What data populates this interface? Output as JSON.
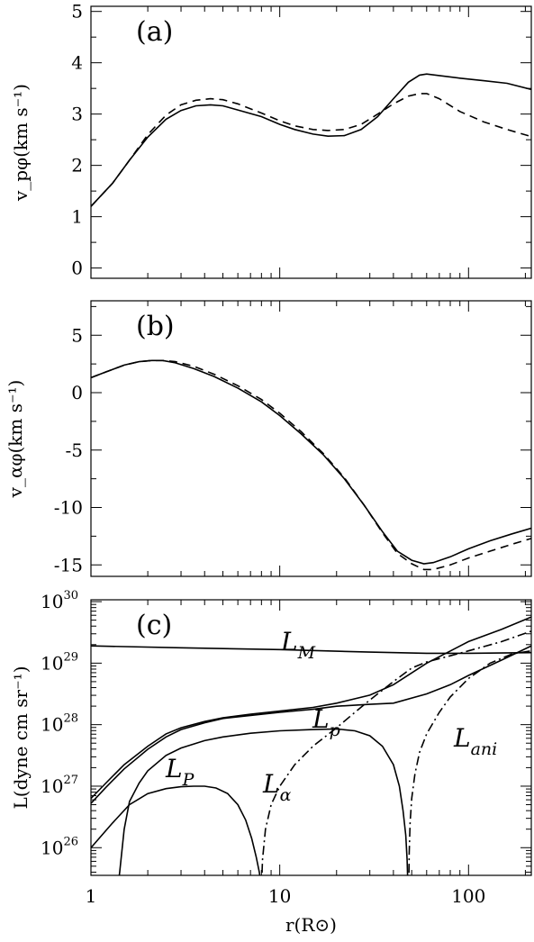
{
  "chart_data": [
    {
      "panel": "a",
      "panel_label": "(a)",
      "type": "line",
      "ylabel": "v_pφ(km s⁻¹)",
      "ylim": [
        -0.2,
        5.1
      ],
      "yticks": [
        0,
        1,
        2,
        3,
        4,
        5
      ],
      "x_scale": "log",
      "xlim": [
        1,
        215
      ],
      "series": [
        {
          "style": "solid",
          "x": [
            1,
            1.3,
            1.6,
            2,
            2.5,
            3,
            3.6,
            4.3,
            5,
            6,
            8,
            10,
            12,
            15,
            18,
            22,
            27,
            33,
            40,
            48,
            55,
            60,
            70,
            90,
            120,
            160,
            215
          ],
          "y": [
            1.2,
            1.65,
            2.1,
            2.55,
            2.9,
            3.07,
            3.16,
            3.18,
            3.16,
            3.08,
            2.95,
            2.8,
            2.7,
            2.61,
            2.57,
            2.58,
            2.7,
            2.95,
            3.3,
            3.62,
            3.76,
            3.78,
            3.75,
            3.7,
            3.65,
            3.6,
            3.48
          ]
        },
        {
          "style": "dashed",
          "x": [
            1,
            1.3,
            1.6,
            2,
            2.5,
            3,
            3.6,
            4.3,
            5,
            6,
            8,
            10,
            12,
            15,
            18,
            22,
            27,
            33,
            40,
            48,
            55,
            60,
            70,
            90,
            120,
            160,
            215
          ],
          "y": [
            1.2,
            1.65,
            2.1,
            2.6,
            2.98,
            3.18,
            3.27,
            3.3,
            3.28,
            3.2,
            3.02,
            2.87,
            2.77,
            2.7,
            2.68,
            2.7,
            2.8,
            3.0,
            3.2,
            3.35,
            3.4,
            3.4,
            3.3,
            3.05,
            2.85,
            2.7,
            2.56
          ]
        }
      ]
    },
    {
      "panel": "b",
      "panel_label": "(b)",
      "type": "line",
      "ylabel": "v_αφ(km s⁻¹)",
      "ylim": [
        -16,
        8
      ],
      "yticks": [
        -15,
        -10,
        -5,
        0,
        5
      ],
      "x_scale": "log",
      "xlim": [
        1,
        215
      ],
      "series": [
        {
          "style": "solid",
          "x": [
            1,
            1.2,
            1.5,
            1.8,
            2.1,
            2.4,
            2.8,
            3.5,
            4.5,
            6,
            8,
            10,
            13,
            17,
            22,
            28,
            35,
            42,
            50,
            58,
            65,
            80,
            100,
            130,
            170,
            215
          ],
          "y": [
            1.3,
            1.8,
            2.4,
            2.7,
            2.8,
            2.8,
            2.6,
            2.1,
            1.4,
            0.4,
            -0.8,
            -2.0,
            -3.6,
            -5.4,
            -7.5,
            -9.8,
            -12.1,
            -13.8,
            -14.6,
            -14.9,
            -14.8,
            -14.3,
            -13.6,
            -12.9,
            -12.3,
            -11.8
          ]
        },
        {
          "style": "dashed",
          "x": [
            1,
            1.2,
            1.5,
            1.8,
            2.1,
            2.4,
            2.8,
            3.5,
            4.5,
            6,
            8,
            10,
            13,
            17,
            22,
            28,
            35,
            42,
            50,
            58,
            65,
            80,
            100,
            130,
            170,
            215
          ],
          "y": [
            1.3,
            1.8,
            2.4,
            2.7,
            2.8,
            2.8,
            2.7,
            2.3,
            1.6,
            0.6,
            -0.6,
            -1.8,
            -3.4,
            -5.3,
            -7.4,
            -9.8,
            -12.2,
            -14.0,
            -14.9,
            -15.4,
            -15.4,
            -15.0,
            -14.4,
            -13.8,
            -13.2,
            -12.7
          ]
        }
      ]
    },
    {
      "panel": "c",
      "panel_label": "(c)",
      "type": "line",
      "y_scale": "log",
      "ylabel": "L(dyne cm sr⁻¹)",
      "ylim_exp": [
        25.55,
        30.03
      ],
      "yticks_exp": [
        26,
        27,
        28,
        29,
        30
      ],
      "ytick_base": "10",
      "x_scale": "log",
      "xlim": [
        1,
        215
      ],
      "xticks": [
        1,
        10,
        100
      ],
      "xlabel": "r(R⊙)",
      "series": [
        {
          "name": "L_M",
          "label_main": "L",
          "label_sub": "M",
          "style": "solid",
          "x": [
            1,
            3,
            10,
            30,
            60,
            100,
            215
          ],
          "logy": [
            29.28,
            29.25,
            29.22,
            29.18,
            29.16,
            29.16,
            29.17
          ]
        },
        {
          "name": "L_P",
          "label_main": "L",
          "label_sub": "P",
          "style": "solid",
          "x": [
            1,
            1.2,
            1.5,
            2,
            2.5,
            3,
            4,
            5,
            7,
            10,
            15,
            20,
            30,
            40,
            60,
            100,
            150,
            215
          ],
          "logy": [
            26.8,
            27.05,
            27.35,
            27.65,
            27.85,
            27.95,
            28.05,
            28.11,
            28.17,
            28.22,
            28.28,
            28.35,
            28.48,
            28.65,
            29.0,
            29.35,
            29.55,
            29.75
          ]
        },
        {
          "name": "L_p",
          "label_main": "L",
          "label_sub": "p",
          "style": "solid",
          "x": [
            1,
            1.2,
            1.5,
            2,
            2.5,
            3,
            4,
            5,
            7,
            10,
            15,
            20,
            30,
            40,
            60,
            80,
            100,
            150,
            215
          ],
          "logy": [
            26.72,
            26.98,
            27.28,
            27.6,
            27.8,
            27.92,
            28.03,
            28.1,
            28.15,
            28.2,
            28.25,
            28.3,
            28.33,
            28.35,
            28.5,
            28.65,
            28.8,
            29.05,
            29.28
          ]
        },
        {
          "name": "L_α",
          "label_main": "L",
          "label_sub": "α",
          "style": "solid",
          "x": [
            1,
            1.3,
            1.6,
            2,
            2.5,
            3,
            3.5,
            4,
            4.6,
            5.3,
            6,
            6.6,
            7.1,
            7.5,
            7.8,
            7.95,
            8.0
          ],
          "logy": [
            26.0,
            26.4,
            26.7,
            26.88,
            26.96,
            26.99,
            27.0,
            27.0,
            26.97,
            26.88,
            26.7,
            26.45,
            26.15,
            25.85,
            25.6,
            25.4,
            25.3
          ]
        },
        {
          "name": "L_α",
          "label_main": "",
          "label_sub": "",
          "style": "solid",
          "x": [
            1.38,
            1.42,
            1.5,
            1.6,
            1.8,
            2,
            2.5,
            3,
            4,
            5,
            7,
            10,
            15,
            20,
            25,
            30,
            35,
            40,
            43,
            45,
            46.5,
            47.3,
            47.8
          ],
          "logy": [
            25.3,
            25.6,
            26.3,
            26.75,
            27.05,
            27.25,
            27.5,
            27.62,
            27.74,
            27.8,
            27.86,
            27.9,
            27.92,
            27.93,
            27.9,
            27.82,
            27.65,
            27.35,
            27.0,
            26.6,
            26.2,
            25.8,
            25.3
          ]
        },
        {
          "name": "L_ani",
          "label_main": "",
          "label_sub": "",
          "style": "dashdot",
          "x": [
            8.0,
            8.1,
            8.4,
            9,
            10,
            12,
            15,
            20,
            25,
            30,
            40,
            50,
            60,
            80,
            100,
            150,
            215
          ],
          "logy": [
            25.3,
            25.8,
            26.3,
            26.7,
            27.0,
            27.35,
            27.65,
            27.95,
            28.2,
            28.4,
            28.7,
            28.92,
            29.02,
            29.12,
            29.2,
            29.35,
            29.52
          ]
        },
        {
          "name": "L_ani",
          "label_main": "L",
          "label_sub": "ani",
          "style": "dashdot",
          "x": [
            48.2,
            48.5,
            49,
            50,
            52,
            55,
            60,
            70,
            80,
            100,
            130,
            170,
            215
          ],
          "logy": [
            25.3,
            25.9,
            26.4,
            26.8,
            27.2,
            27.55,
            27.85,
            28.2,
            28.45,
            28.75,
            29.0,
            29.15,
            29.2
          ]
        }
      ]
    }
  ]
}
